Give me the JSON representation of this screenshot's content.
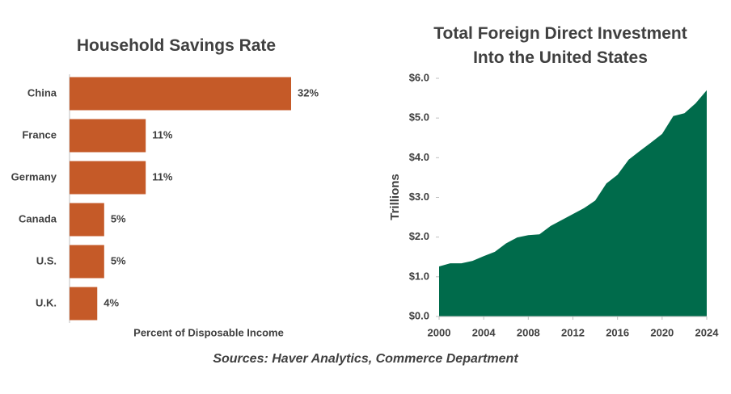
{
  "chart_data": [
    {
      "type": "hbar",
      "title": "Household Savings Rate",
      "categories": [
        "China",
        "France",
        "Germany",
        "Canada",
        "U.S.",
        "U.K."
      ],
      "values": [
        32,
        11,
        11,
        5,
        5,
        4
      ],
      "value_labels": [
        "32%",
        "11%",
        "11%",
        "5%",
        "5%",
        "4%"
      ],
      "xlabel": "Percent of Disposable Income",
      "color": "#c55a28"
    },
    {
      "type": "area",
      "title": "Total Foreign Direct Investment Into the United States",
      "x": [
        2000,
        2001,
        2002,
        2003,
        2004,
        2005,
        2006,
        2007,
        2008,
        2009,
        2010,
        2011,
        2012,
        2013,
        2014,
        2015,
        2016,
        2017,
        2018,
        2019,
        2020,
        2021,
        2022,
        2023,
        2024
      ],
      "values": [
        1.26,
        1.34,
        1.34,
        1.4,
        1.52,
        1.63,
        1.84,
        1.99,
        2.05,
        2.07,
        2.28,
        2.43,
        2.58,
        2.73,
        2.92,
        3.35,
        3.57,
        3.95,
        4.17,
        4.38,
        4.6,
        5.05,
        5.12,
        5.37,
        5.7
      ],
      "ylabel": "Trillions",
      "color": "#006b4b",
      "xlim": [
        2000,
        2024
      ],
      "xticks": [
        2000,
        2004,
        2008,
        2012,
        2016,
        2020,
        2024
      ],
      "ylim": [
        0,
        6
      ],
      "yticks": [
        {
          "value": 0,
          "label": "$0.0"
        },
        {
          "value": 1,
          "label": "$1.0"
        },
        {
          "value": 2,
          "label": "$2.0"
        },
        {
          "value": 3,
          "label": "$3.0"
        },
        {
          "value": 4,
          "label": "$4.0"
        },
        {
          "value": 5,
          "label": "$5.0"
        },
        {
          "value": 6,
          "label": "$6.0"
        }
      ]
    }
  ],
  "footer": {
    "source": "Sources: Haver Analytics, Commerce Department"
  }
}
